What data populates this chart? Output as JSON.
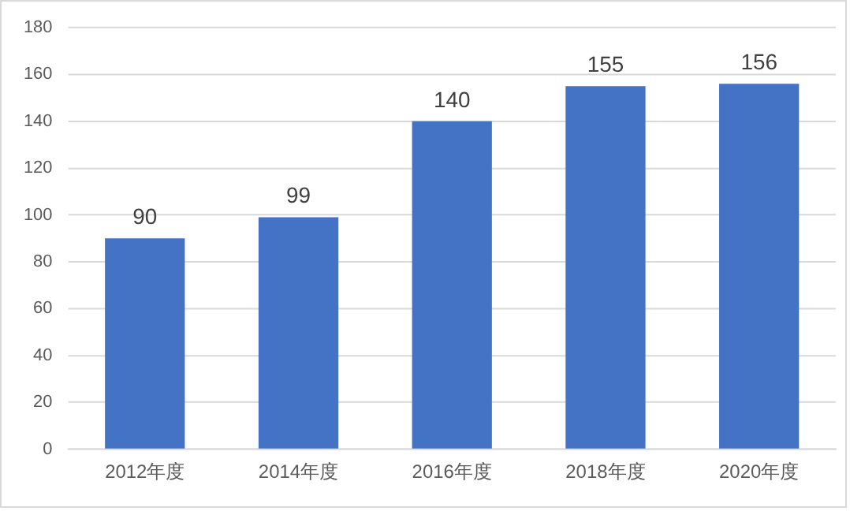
{
  "chart_data": {
    "type": "bar",
    "categories": [
      "2012年度",
      "2014年度",
      "2016年度",
      "2018年度",
      "2020年度"
    ],
    "values": [
      90,
      99,
      140,
      155,
      156
    ],
    "color": "#4472c4",
    "ylim": [
      0,
      180
    ],
    "yticks": [
      0,
      20,
      40,
      60,
      80,
      100,
      120,
      140,
      160,
      180
    ],
    "grid": "y",
    "data_labels": true
  }
}
